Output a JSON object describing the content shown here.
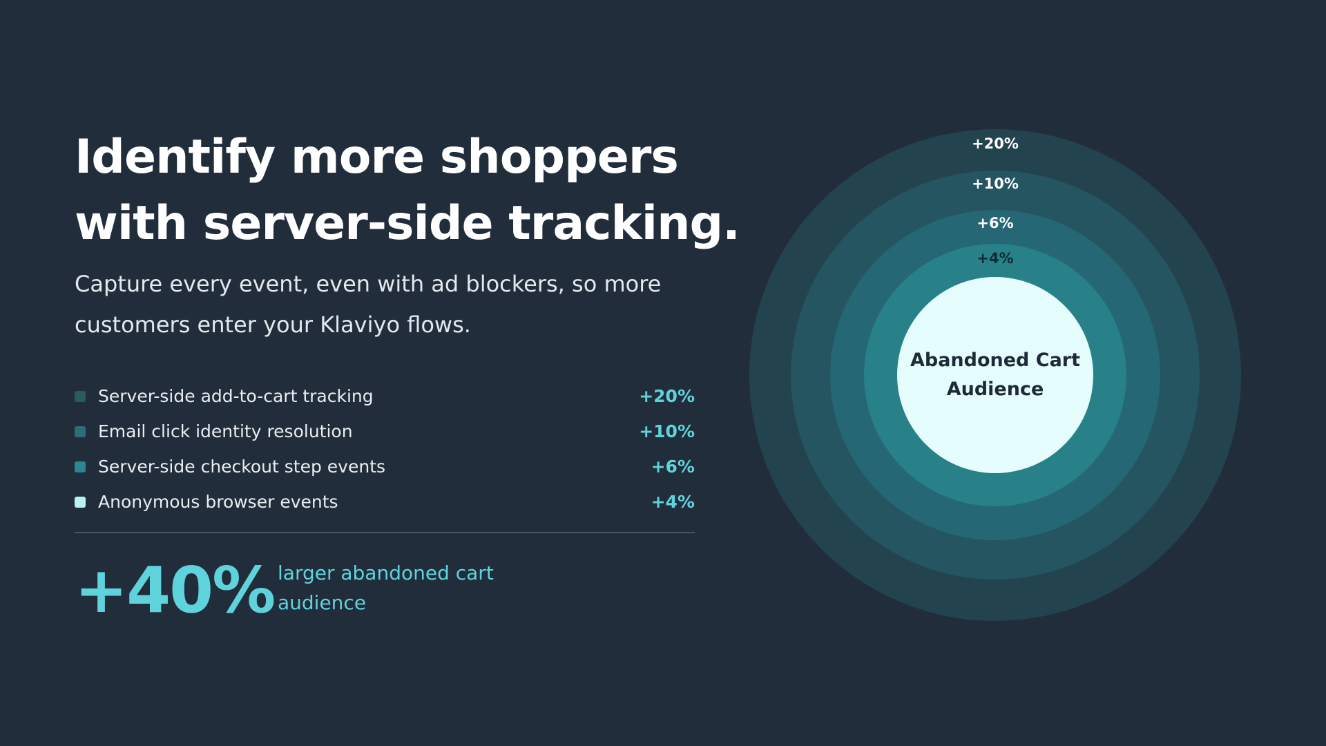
{
  "headline": {
    "line1": "Identify more shoppers",
    "line2": "with server-side tracking."
  },
  "subtitle": {
    "line1": "Capture every event, even with ad blockers, so more",
    "line2": "customers enter your Klaviyo flows."
  },
  "sources": [
    {
      "label": "Server-side add-to-cart tracking",
      "value": "+20%",
      "color": "#2b5a62"
    },
    {
      "label": "Email click identity resolution",
      "value": "+10%",
      "color": "#2f6d76"
    },
    {
      "label": "Server-side checkout step events",
      "value": "+6%",
      "color": "#2a8791"
    },
    {
      "label": "Anonymous browser events",
      "value": "+4%",
      "color": "#b8f2f5"
    }
  ],
  "summary": {
    "value": "+40%",
    "caption_line1": "larger abandoned cart",
    "caption_line2": "audience"
  },
  "diagram": {
    "rings": [
      {
        "label": "+20%",
        "color": "#23434f"
      },
      {
        "label": "+10%",
        "color": "#245561"
      },
      {
        "label": "+6%",
        "color": "#256774"
      },
      {
        "label": "+4%",
        "color": "#288089"
      }
    ],
    "core_line1": "Abandoned Cart",
    "core_line2": "Audience",
    "core_color": "#e6fdfd"
  },
  "colors": {
    "background": "#222d3b",
    "accent": "#5fd3dc"
  }
}
